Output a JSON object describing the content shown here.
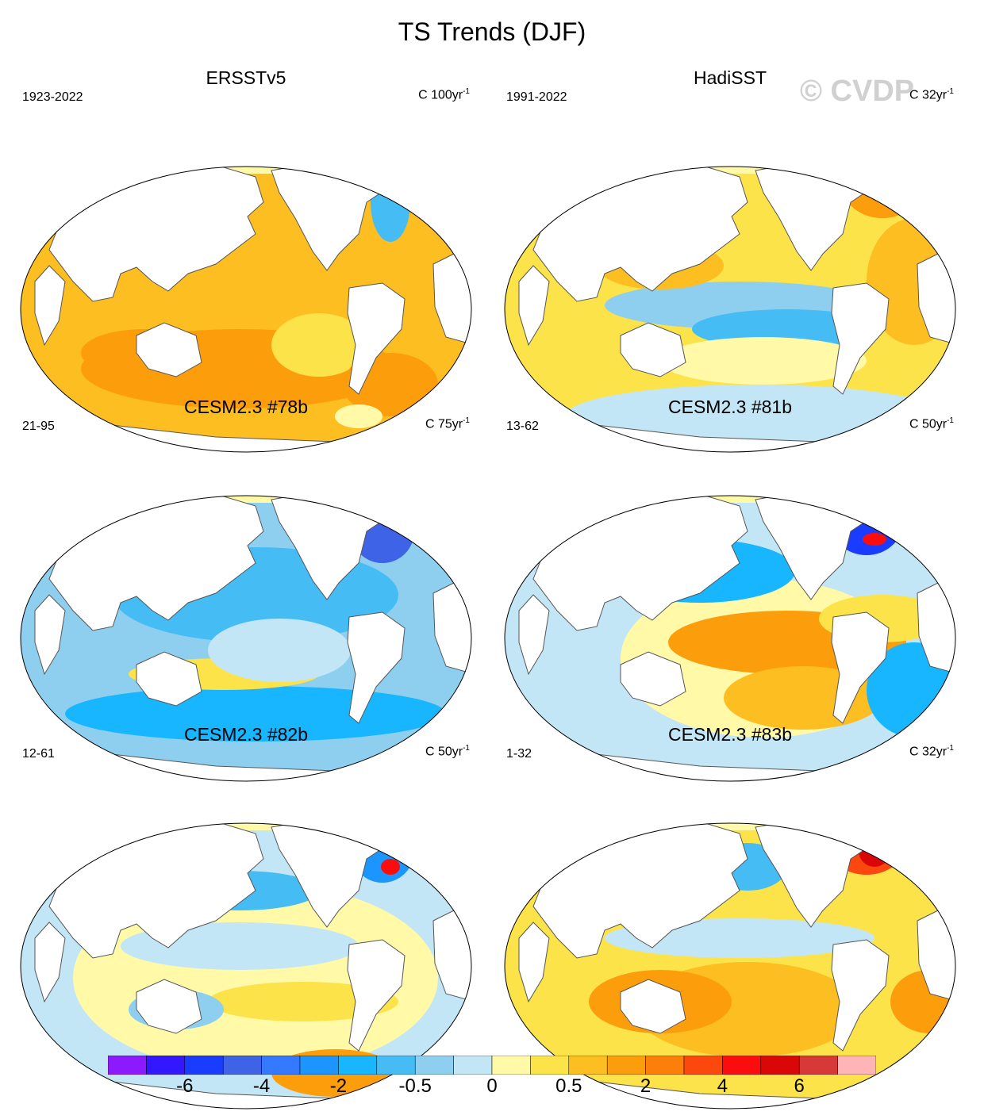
{
  "figure": {
    "title": "TS Trends (DJF)",
    "watermark": "© CVDP"
  },
  "panels": [
    {
      "name": "ERSSTv5",
      "period": "1923-2022",
      "units": "C 100yr",
      "units_exp": "-1",
      "pattern": "warm"
    },
    {
      "name": "HadiSST",
      "period": "1991-2022",
      "units": "C 32yr",
      "units_exp": "-1",
      "pattern": "lanina"
    },
    {
      "name": "CESM2.3 #78b",
      "period": "21-95",
      "units": "C 75yr",
      "units_exp": "-1",
      "pattern": "cool"
    },
    {
      "name": "CESM2.3 #81b",
      "period": "13-62",
      "units": "C 50yr",
      "units_exp": "-1",
      "pattern": "elnino"
    },
    {
      "name": "CESM2.3 #82b",
      "period": "12-61",
      "units": "C 50yr",
      "units_exp": "-1",
      "pattern": "mixed"
    },
    {
      "name": "CESM2.3 #83b",
      "period": "1-32",
      "units": "C 32yr",
      "units_exp": "-1",
      "pattern": "warmmix"
    }
  ],
  "colorbar": {
    "colors": [
      "#8c1aff",
      "#3318ff",
      "#1a3cff",
      "#3f63e6",
      "#3479ff",
      "#1c95ff",
      "#17b6ff",
      "#46bcf5",
      "#8ecff0",
      "#c2e6f6",
      "#fff9a8",
      "#fce349",
      "#fcbe21",
      "#fc9d0b",
      "#fc7e0b",
      "#fc470f",
      "#fc0d0d",
      "#d90708",
      "#d73838",
      "#ffb5b5"
    ],
    "tick_labels": [
      "-6",
      "-4",
      "-2",
      "-0.5",
      "0",
      "0.5",
      "2",
      "4",
      "6"
    ],
    "tick_boundaries": [
      2,
      4,
      6,
      8,
      10,
      12,
      14,
      16,
      18
    ]
  }
}
